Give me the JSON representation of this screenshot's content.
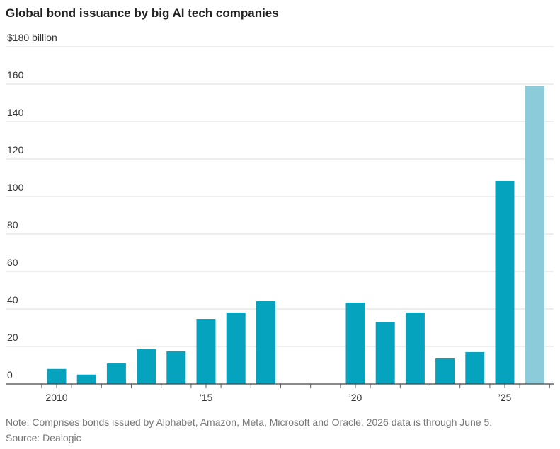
{
  "chart_data": {
    "type": "bar",
    "title": "Global bond issuance by big AI tech companies",
    "categories": [
      "2010",
      null,
      null,
      null,
      null,
      "’15",
      null,
      null,
      null,
      null,
      "’20",
      null,
      null,
      null,
      null,
      "’25",
      null
    ],
    "values": [
      8,
      5,
      11,
      18.5,
      17.4,
      34.7,
      38.1,
      44.2,
      0,
      0,
      43.4,
      33.2,
      38.1,
      13.6,
      17,
      108.3,
      159.2
    ],
    "colors": [
      "#06a3bf",
      "#06a3bf",
      "#06a3bf",
      "#06a3bf",
      "#06a3bf",
      "#06a3bf",
      "#06a3bf",
      "#06a3bf",
      "#06a3bf",
      "#06a3bf",
      "#06a3bf",
      "#06a3bf",
      "#06a3bf",
      "#06a3bf",
      "#06a3bf",
      "#06a3bf",
      "#8ccbd9"
    ],
    "ylim": [
      0,
      180
    ],
    "yticks": [
      0,
      20,
      40,
      60,
      80,
      100,
      120,
      140,
      160,
      {
        "value": 180,
        "label": "$180 billion"
      }
    ],
    "grid": true,
    "note": "Note: Comprises bonds issued by Alphabet, Amazon, Meta, Microsoft and Oracle. 2026 data is through June 5.",
    "source": "Source: Dealogic"
  }
}
